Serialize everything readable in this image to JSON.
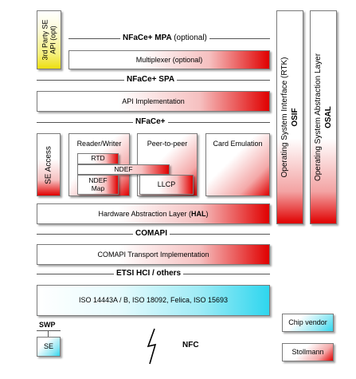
{
  "third_party": {
    "line1": "3rd Party SE",
    "line2": "API (opt)"
  },
  "dividers": {
    "mpa": {
      "label": "NFaCe+ MPA",
      "suffix": "(optional)"
    },
    "spa": {
      "label": "NFaCe+ SPA"
    },
    "nface": {
      "label": "NFaCe+"
    },
    "comapi": {
      "label": "COMAPI"
    },
    "etsi": {
      "label": "ETSI HCI / others"
    }
  },
  "boxes": {
    "multiplexer": "Multiplexer (optional)",
    "api_impl": "API Implementation",
    "se_access": "SE Access",
    "reader_writer": "Reader/Writer",
    "rtd": "RTD",
    "ndef_bar": "NDEF",
    "ndef_map": {
      "line1": "NDEF",
      "line2": "Map"
    },
    "peer_to_peer": "Peer-to-peer",
    "llcp": "LLCP",
    "card_emulation": "Card Emulation",
    "hal": {
      "text": "Hardware Abstraction Layer (",
      "bold": "HAL",
      "end": ")"
    },
    "comapi_impl": "COMAPI Transport Implementation",
    "iso": "ISO 14443A / B, ISO 18092, Felica, ISO 15693",
    "osif": {
      "line1": "Operating System Interface (RTK)",
      "line2": "OSIF"
    },
    "osal": {
      "line1": "Operating System Abstraction Layer",
      "line2": "OSAL"
    }
  },
  "bottom": {
    "swp": "SWP",
    "se": "SE",
    "nfc": "NFC"
  },
  "legend": {
    "chip_vendor": "Chip vendor",
    "stollmann": "Stollmann"
  },
  "colors": {
    "stollmann_red": "#e00000",
    "chip_vendor_cyan": "#2fd6ee",
    "third_party_yellow": "#ecdf10"
  }
}
